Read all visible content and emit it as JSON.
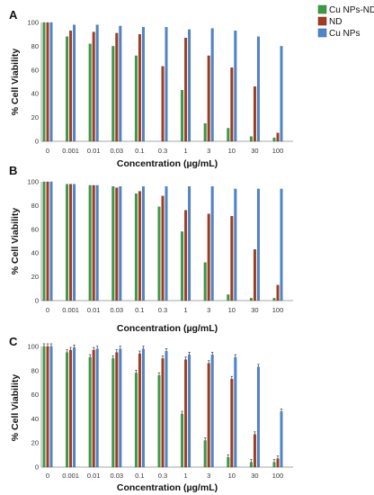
{
  "legend": [
    {
      "name": "Cu NPs-ND",
      "color": "#3a9b45"
    },
    {
      "name": "ND",
      "color": "#a33b1f"
    },
    {
      "name": "Cu NPs",
      "color": "#4f86c9"
    }
  ],
  "chart_data": [
    {
      "type": "bar",
      "panel_label": "A",
      "categories": [
        "0",
        "0.001",
        "0.01",
        "0.03",
        "0.1",
        "0.3",
        "1",
        "3",
        "10",
        "30",
        "100"
      ],
      "series": [
        {
          "name": "Cu NPs-ND",
          "values": [
            100,
            88,
            82,
            80,
            72,
            0,
            43,
            15,
            11,
            4,
            3
          ]
        },
        {
          "name": "ND",
          "values": [
            100,
            93,
            92,
            91,
            90,
            63,
            87,
            72,
            62,
            46,
            7
          ]
        },
        {
          "name": "Cu NPs",
          "values": [
            100,
            98,
            98,
            97,
            96,
            96,
            94,
            95,
            93,
            88,
            80
          ]
        }
      ],
      "xlabel": "Concentration (µg/mL)",
      "ylabel": "% Cell Viability",
      "ylim": [
        0,
        100
      ],
      "yticks": [
        "0",
        "20",
        "40",
        "60",
        "80",
        "100"
      ],
      "grid": false,
      "legend_position": "top-right"
    },
    {
      "type": "bar",
      "panel_label": "B",
      "categories": [
        "0",
        "0.001",
        "0.01",
        "0.03",
        "0.1",
        "0.3",
        "1",
        "3",
        "10",
        "30",
        "100"
      ],
      "series": [
        {
          "name": "Cu NPs-ND",
          "values": [
            100,
            98,
            97,
            96,
            90,
            79,
            58,
            32,
            5,
            2,
            2
          ]
        },
        {
          "name": "ND",
          "values": [
            100,
            98,
            97,
            95,
            92,
            88,
            76,
            73,
            71,
            43,
            13
          ]
        },
        {
          "name": "Cu NPs",
          "values": [
            100,
            98,
            97,
            96,
            96,
            96,
            96,
            96,
            94,
            94,
            94
          ]
        }
      ],
      "xlabel": "Concentration (µg/mL)",
      "ylabel": "% Cell Viability",
      "ylim": [
        0,
        100
      ],
      "yticks": [
        "0",
        "20",
        "40",
        "60",
        "80",
        "100"
      ],
      "grid": false
    },
    {
      "type": "bar",
      "panel_label": "C",
      "categories": [
        "0",
        "0.001",
        "0.01",
        "0.03",
        "0.1",
        "0.3",
        "1",
        "3",
        "10",
        "30",
        "100"
      ],
      "series": [
        {
          "name": "Cu NPs-ND",
          "values": [
            100,
            95,
            91,
            90,
            78,
            76,
            44,
            22,
            8,
            4,
            4
          ]
        },
        {
          "name": "ND",
          "values": [
            100,
            97,
            97,
            95,
            94,
            90,
            89,
            86,
            73,
            27,
            7
          ]
        },
        {
          "name": "Cu NPs",
          "values": [
            100,
            99,
            98,
            98,
            98,
            96,
            93,
            93,
            91,
            83,
            46
          ]
        }
      ],
      "xlabel": "Concentration (µg/mL)",
      "ylabel": "% Cell Viability",
      "ylim": [
        0,
        100
      ],
      "yticks": [
        "0",
        "20",
        "40",
        "60",
        "80",
        "100"
      ],
      "grid": false,
      "error_bars": true
    }
  ]
}
